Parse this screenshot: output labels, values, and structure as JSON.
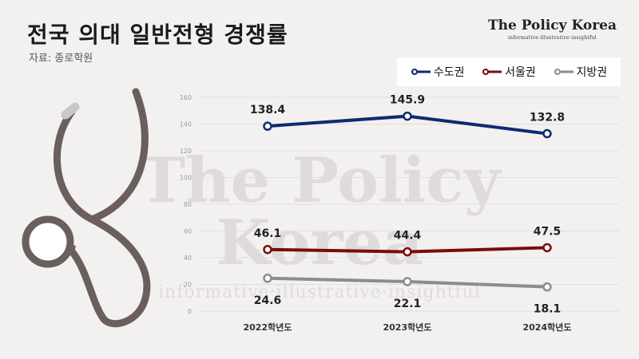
{
  "title": "전국 의대 일반전형 경쟁률",
  "source": "자료: 종로학원",
  "brand": {
    "name": "The Policy Korea",
    "tagline": "informative·illustrative·insightful"
  },
  "watermark": {
    "name": "The Policy Korea",
    "tagline": "informative·illustrative·insightful"
  },
  "colors": {
    "background": "#f3f0f0",
    "capital": "#0d2b73",
    "seoul": "#7a0c0c",
    "regional": "#8c8c8c",
    "stethoscope": "#6b5e5e",
    "stethoscope_tip": "#c8c8c8"
  },
  "illustration": {
    "name": "stethoscope-icon"
  },
  "chart_data": {
    "type": "line",
    "categories": [
      "2022학년도",
      "2023학년도",
      "2024학년도"
    ],
    "series": [
      {
        "name": "수도권",
        "values": [
          138.4,
          145.9,
          132.8
        ],
        "color": "#0d2b73",
        "label_position": "above"
      },
      {
        "name": "서울권",
        "values": [
          46.1,
          44.4,
          47.5
        ],
        "color": "#7a0c0c",
        "label_position": "above"
      },
      {
        "name": "지방권",
        "values": [
          24.6,
          22.1,
          18.1
        ],
        "color": "#8c8c8c",
        "label_position": "below"
      }
    ],
    "ylim": [
      0,
      160
    ],
    "yticks": [
      "0",
      "20",
      "40",
      "60",
      "80",
      "100",
      "120",
      "140",
      "160"
    ],
    "grid": true,
    "legend": "top-right"
  }
}
